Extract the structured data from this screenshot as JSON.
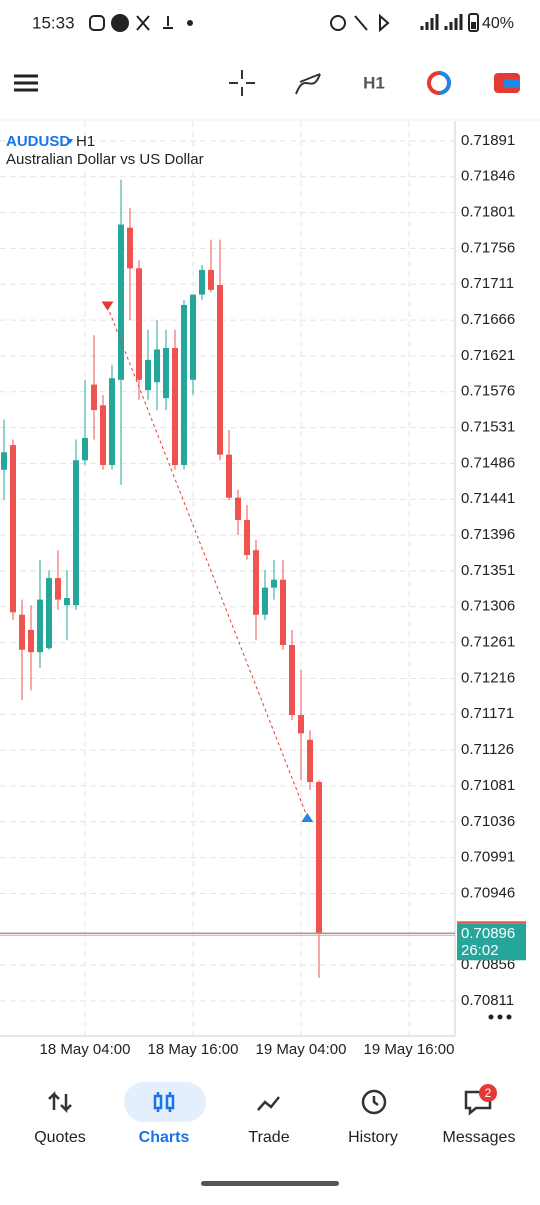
{
  "status_bar": {
    "time": "15:33",
    "battery": "40%"
  },
  "toolbar": {
    "timeframe": "H1"
  },
  "chart_data": {
    "type": "candlestick",
    "symbol": "AUDUSD",
    "timeframe": "H1",
    "subtitle": "Australian Dollar vs US Dollar",
    "categories": [
      null,
      null,
      null,
      null,
      null,
      null,
      null,
      null,
      null,
      "18 May 04:00",
      null,
      null,
      null,
      null,
      null,
      null,
      null,
      null,
      null,
      null,
      null,
      "18 May 16:00",
      null,
      null,
      null,
      null,
      null,
      null,
      null,
      null,
      null,
      null,
      null,
      "19 May 04:00",
      null,
      null,
      null,
      null,
      null,
      null,
      null,
      null,
      null,
      null,
      null,
      "19 May 16:00"
    ],
    "open": [
      0.71478,
      0.71509,
      0.71296,
      0.71277,
      0.71249,
      0.71254,
      0.71342,
      0.71308,
      0.71308,
      0.7149,
      0.71585,
      0.71559,
      0.71484,
      0.71591,
      0.71782,
      0.71731,
      0.71578,
      0.71588,
      0.71568,
      0.71631,
      0.71484,
      0.71591,
      0.71698,
      0.71729,
      0.7171,
      0.71497,
      0.71443,
      0.71415,
      0.71377,
      0.71296,
      0.7133,
      0.7134,
      0.71258,
      0.7117,
      0.71139,
      0.71086,
      null,
      null,
      null,
      null,
      null,
      null,
      null,
      null,
      null,
      null
    ],
    "high": [
      0.71541,
      0.71516,
      0.71315,
      0.71308,
      0.71365,
      0.71352,
      0.71377,
      0.71352,
      0.71516,
      0.71591,
      0.71647,
      0.71572,
      0.7161,
      0.71842,
      0.71807,
      0.71741,
      0.71654,
      0.71666,
      0.71654,
      0.71654,
      0.71691,
      0.71698,
      0.71735,
      0.71767,
      0.71767,
      0.71528,
      0.71453,
      0.71434,
      0.7139,
      0.71352,
      0.71365,
      0.71365,
      0.71277,
      0.71227,
      0.71151,
      0.71088,
      null,
      null,
      null,
      null,
      null,
      null,
      null,
      null,
      null,
      null
    ],
    "low": [
      0.7144,
      0.71289,
      0.71189,
      0.71201,
      0.71229,
      0.71252,
      0.71302,
      0.71264,
      0.71302,
      0.71484,
      0.71516,
      0.71478,
      0.71478,
      0.71459,
      0.71666,
      0.71566,
      0.71566,
      0.71553,
      0.71553,
      0.71478,
      0.71478,
      0.71572,
      0.71691,
      0.71701,
      0.7149,
      0.7144,
      0.71396,
      0.71365,
      0.71264,
      0.71289,
      0.71315,
      0.71252,
      0.71164,
      0.71088,
      0.71076,
      0.7084,
      null,
      null,
      null,
      null,
      null,
      null,
      null,
      null,
      null,
      null
    ],
    "close": [
      0.715,
      0.71299,
      0.71252,
      0.71249,
      0.71315,
      0.71342,
      0.71315,
      0.71317,
      0.7149,
      0.71518,
      0.71553,
      0.71484,
      0.71593,
      0.71786,
      0.71731,
      0.71591,
      0.71616,
      0.71629,
      0.71631,
      0.71484,
      0.71685,
      0.71698,
      0.71729,
      0.71704,
      0.71497,
      0.71443,
      0.71415,
      0.71371,
      0.71296,
      0.7133,
      0.7134,
      0.71258,
      0.7117,
      0.71147,
      0.71086,
      0.70896,
      null,
      null,
      null,
      null,
      null,
      null,
      null,
      null,
      null,
      null
    ],
    "up_color": "#26a69a",
    "down_color": "#ef5350",
    "ylim": [
      0.70767,
      0.71916
    ],
    "yticks": [
      0.71891,
      0.71846,
      0.71801,
      0.71756,
      0.71711,
      0.71666,
      0.71621,
      0.71576,
      0.71531,
      0.71486,
      0.71441,
      0.71396,
      0.71351,
      0.71306,
      0.71261,
      0.71216,
      0.71171,
      0.71126,
      0.71081,
      0.71036,
      0.70991,
      0.70946,
      0.70856,
      0.70811
    ],
    "grid": true,
    "current_price": 0.70896,
    "countdown": "26:02",
    "trade": {
      "sell": 0.71683,
      "buy": 0.71042
    }
  },
  "nav": {
    "items": [
      "Quotes",
      "Charts",
      "Trade",
      "History",
      "Messages"
    ],
    "active": 1,
    "badge": "2"
  }
}
